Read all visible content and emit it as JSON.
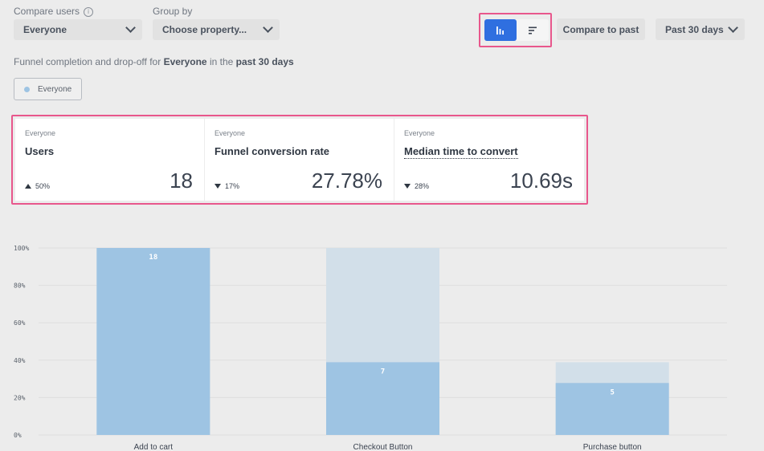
{
  "controls": {
    "compare_label": "Compare users",
    "compare_value": "Everyone",
    "group_label": "Group by",
    "group_value": "Choose property...",
    "compare_past": "Compare to past",
    "range_value": "Past 30 days",
    "info_glyph": "i"
  },
  "subtitle": {
    "prefix": "Funnel completion and drop-off for",
    "segment": "Everyone",
    "mid": "in the",
    "range": "past 30 days"
  },
  "legend": {
    "label": "Everyone",
    "color": "#9ec4e3"
  },
  "cards": [
    {
      "segment": "Everyone",
      "title": "Users",
      "delta": "50%",
      "direction": "up",
      "value": "18"
    },
    {
      "segment": "Everyone",
      "title": "Funnel conversion rate",
      "delta": "17%",
      "direction": "down",
      "value": "27.78%"
    },
    {
      "segment": "Everyone",
      "title": "Median time to convert",
      "delta": "28%",
      "direction": "down",
      "value": "10.69s"
    }
  ],
  "colors": {
    "accent": "#2f6fe0",
    "highlight": "#e8578c",
    "bar": "#9ec4e3",
    "bar_dropoff": "#d2dfe9"
  },
  "chart_data": {
    "type": "bar",
    "categories": [
      "Add to cart",
      "Checkout Button",
      "Purchase button"
    ],
    "series": [
      {
        "values": [
          100,
          38.89,
          27.78
        ]
      },
      {
        "values": [
          100,
          100,
          38.89
        ]
      }
    ],
    "data_labels": [
      "18",
      "7",
      "5"
    ],
    "y_ticks": [
      "0%",
      "20%",
      "40%",
      "60%",
      "80%",
      "100%"
    ],
    "ylim": [
      0,
      100
    ],
    "grid": true
  }
}
